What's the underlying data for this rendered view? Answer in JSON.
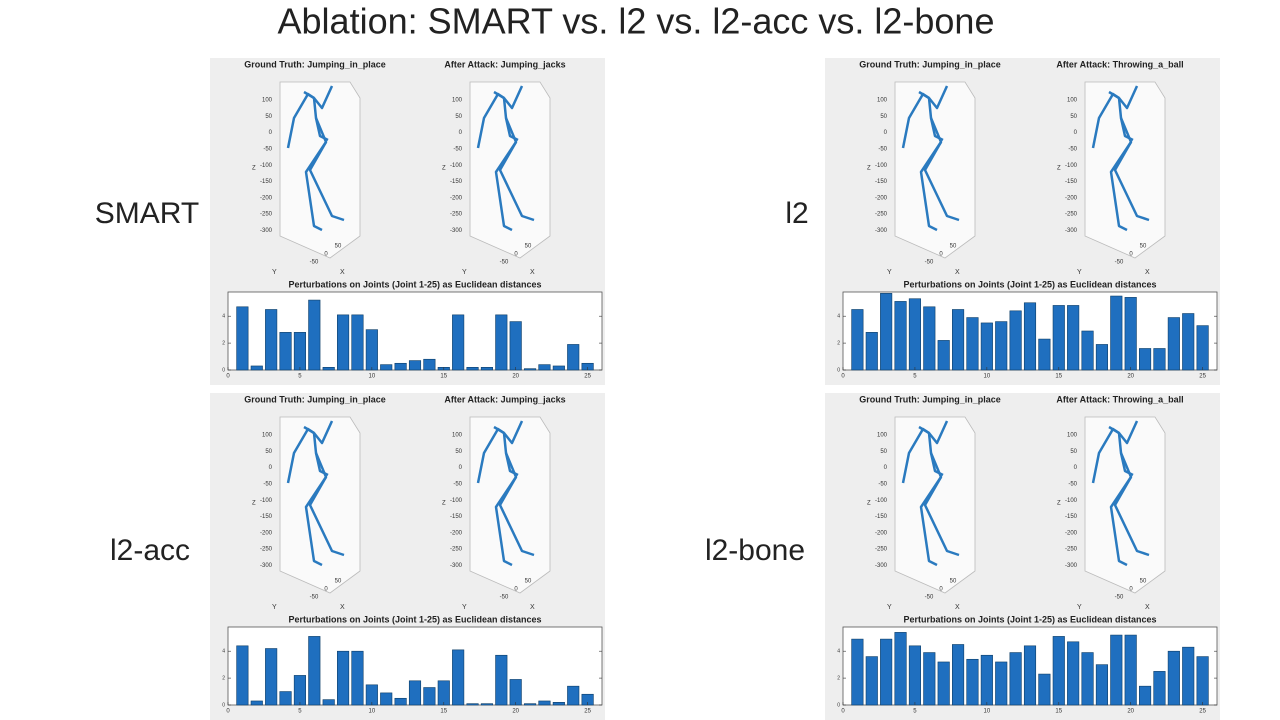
{
  "title": "Ablation: SMART vs. l2 vs. l2-acc vs. l2-bone",
  "skeleton_axes": {
    "z_label": "Z",
    "x_label": "X",
    "y_label": "Y",
    "zticks": [
      100,
      50,
      0,
      -50,
      -100,
      -150,
      -200,
      -250,
      -300
    ],
    "xticks": [
      -50,
      0,
      50
    ]
  },
  "panels": [
    {
      "label": "SMART",
      "ground_truth": "Ground Truth: Jumping_in_place",
      "after_attack": "After Attack: Jumping_jacks"
    },
    {
      "label": "l2",
      "ground_truth": "Ground Truth: Jumping_in_place",
      "after_attack": "After Attack: Throwing_a_ball"
    },
    {
      "label": "l2-acc",
      "ground_truth": "Ground Truth: Jumping_in_place",
      "after_attack": "After Attack: Jumping_jacks"
    },
    {
      "label": "l2-bone",
      "ground_truth": "Ground Truth: Jumping_in_place",
      "after_attack": "After Attack: Throwing_a_ball"
    }
  ],
  "chart_data": [
    {
      "type": "bar",
      "title": "Perturbations on Joints (Joint 1-25) as Euclidean distances",
      "color": "#1f6fbf",
      "x": [
        1,
        2,
        3,
        4,
        5,
        6,
        7,
        8,
        9,
        10,
        11,
        12,
        13,
        14,
        15,
        16,
        17,
        18,
        19,
        20,
        21,
        22,
        23,
        24,
        25
      ],
      "values": [
        4.7,
        0.3,
        4.5,
        2.8,
        2.8,
        5.2,
        0.2,
        4.1,
        4.1,
        3.0,
        0.4,
        0.5,
        0.7,
        0.8,
        0.2,
        4.1,
        0.2,
        0.2,
        4.1,
        3.6,
        0.1,
        0.4,
        0.3,
        1.9,
        0.5
      ],
      "xlim": [
        0,
        26
      ],
      "xticks": [
        0,
        5,
        10,
        15,
        20,
        25
      ],
      "ylim": [
        0,
        5.8
      ],
      "yticks": [
        0,
        2,
        4
      ]
    },
    {
      "type": "bar",
      "title": "Perturbations on Joints (Joint 1-25) as Euclidean distances",
      "color": "#1f6fbf",
      "x": [
        1,
        2,
        3,
        4,
        5,
        6,
        7,
        8,
        9,
        10,
        11,
        12,
        13,
        14,
        15,
        16,
        17,
        18,
        19,
        20,
        21,
        22,
        23,
        24,
        25
      ],
      "values": [
        4.5,
        2.8,
        5.7,
        5.1,
        5.3,
        4.7,
        2.2,
        4.5,
        3.9,
        3.5,
        3.6,
        4.4,
        5.0,
        2.3,
        4.8,
        4.8,
        2.9,
        1.9,
        5.5,
        5.4,
        1.6,
        1.6,
        3.9,
        4.2,
        3.3
      ],
      "xlim": [
        0,
        26
      ],
      "xticks": [
        0,
        5,
        10,
        15,
        20,
        25
      ],
      "ylim": [
        0,
        5.8
      ],
      "yticks": [
        0,
        2,
        4
      ]
    },
    {
      "type": "bar",
      "title": "Perturbations on Joints (Joint 1-25) as Euclidean distances",
      "color": "#1f6fbf",
      "x": [
        1,
        2,
        3,
        4,
        5,
        6,
        7,
        8,
        9,
        10,
        11,
        12,
        13,
        14,
        15,
        16,
        17,
        18,
        19,
        20,
        21,
        22,
        23,
        24,
        25
      ],
      "values": [
        4.4,
        0.3,
        4.2,
        1.0,
        2.2,
        5.1,
        0.4,
        4.0,
        4.0,
        1.5,
        0.9,
        0.5,
        1.8,
        1.3,
        1.8,
        4.1,
        0.1,
        0.1,
        3.7,
        1.9,
        0.1,
        0.3,
        0.2,
        1.4,
        0.8
      ],
      "xlim": [
        0,
        26
      ],
      "xticks": [
        0,
        5,
        10,
        15,
        20,
        25
      ],
      "ylim": [
        0,
        5.8
      ],
      "yticks": [
        0,
        2,
        4
      ]
    },
    {
      "type": "bar",
      "title": "Perturbations on Joints (Joint 1-25) as Euclidean distances",
      "color": "#1f6fbf",
      "x": [
        1,
        2,
        3,
        4,
        5,
        6,
        7,
        8,
        9,
        10,
        11,
        12,
        13,
        14,
        15,
        16,
        17,
        18,
        19,
        20,
        21,
        22,
        23,
        24,
        25
      ],
      "values": [
        4.9,
        3.6,
        4.9,
        5.4,
        4.4,
        3.9,
        3.2,
        4.5,
        3.4,
        3.7,
        3.2,
        3.9,
        4.4,
        2.3,
        5.1,
        4.7,
        3.9,
        3.0,
        5.2,
        5.2,
        1.4,
        2.5,
        4.0,
        4.3,
        3.6
      ],
      "xlim": [
        0,
        26
      ],
      "xticks": [
        0,
        5,
        10,
        15,
        20,
        25
      ],
      "ylim": [
        0,
        5.8
      ],
      "yticks": [
        0,
        2,
        4
      ]
    }
  ]
}
